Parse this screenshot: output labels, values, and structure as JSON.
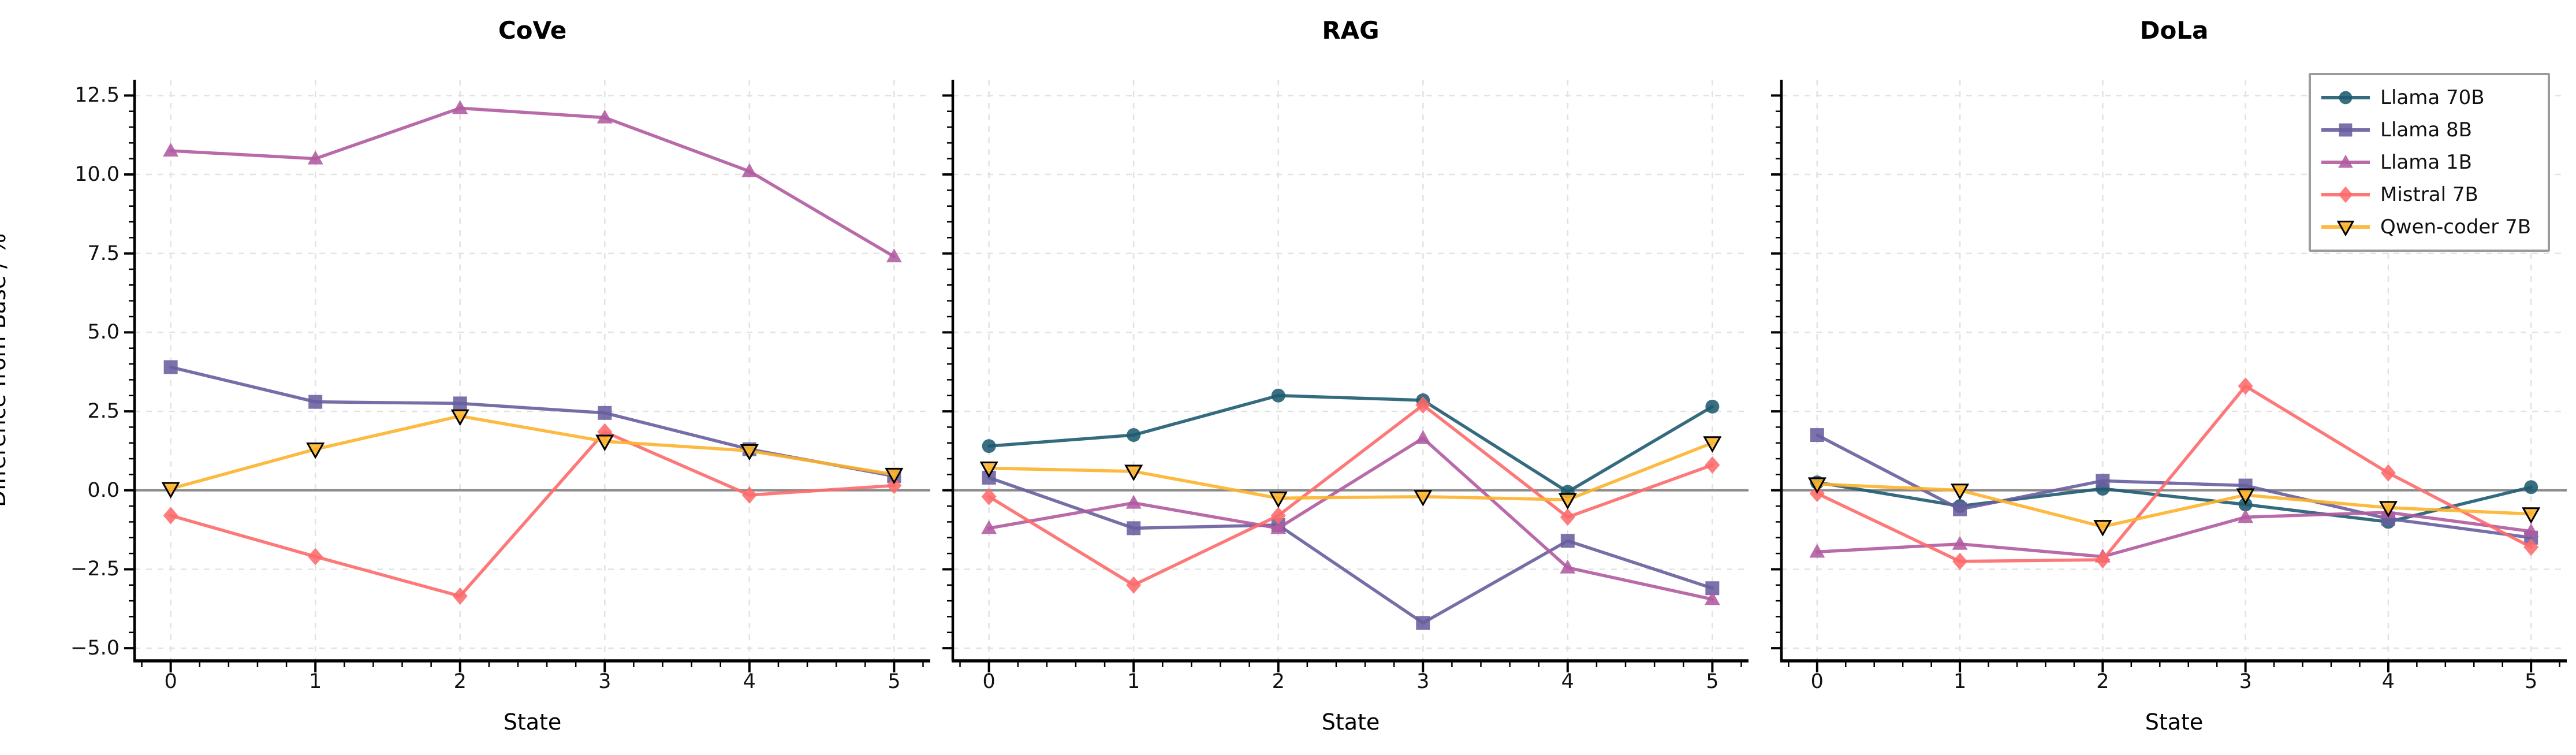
{
  "figure": {
    "ylabel": "Difference from Base / %",
    "xlabel": "State",
    "background_color": "#ffffff",
    "axis_color": "#000000",
    "grid_color": "#e2e2e2",
    "zero_line_color": "#8a8a8a",
    "tick_label_color": "#111111",
    "ylim": [
      -5.4,
      13.0
    ],
    "yticks": [
      -5.0,
      -2.5,
      0.0,
      2.5,
      5.0,
      7.5,
      10.0,
      12.5
    ],
    "ytick_labels": [
      "−5.0",
      "−2.5",
      "0.0",
      "2.5",
      "5.0",
      "7.5",
      "10.0",
      "12.5"
    ],
    "xticks": [
      0,
      1,
      2,
      3,
      4,
      5
    ],
    "xtick_labels": [
      "0",
      "1",
      "2",
      "3",
      "4",
      "5"
    ],
    "grid": "on"
  },
  "series_defs": [
    {
      "name": "Llama 70B",
      "color": "#1f5b70",
      "marker": "circle",
      "marker_edge": "none"
    },
    {
      "name": "Llama 8B",
      "color": "#685e9e",
      "marker": "square",
      "marker_edge": "none"
    },
    {
      "name": "Llama 1B",
      "color": "#b05aa0",
      "marker": "triangle-up",
      "marker_edge": "none"
    },
    {
      "name": "Mistral 7B",
      "color": "#fd6a6a",
      "marker": "diamond",
      "marker_edge": "none"
    },
    {
      "name": "Qwen-coder 7B",
      "color": "#fdb32b",
      "marker": "triangle-down",
      "marker_edge": "#000000"
    }
  ],
  "legend": {
    "position": "top-right",
    "entries": [
      "Llama 70B",
      "Llama 8B",
      "Llama 1B",
      "Mistral 7B",
      "Qwen-coder 7B"
    ]
  },
  "chart_data": [
    {
      "type": "line",
      "title": "CoVe",
      "xlabel": "State",
      "x": [
        0,
        1,
        2,
        3,
        4,
        5
      ],
      "series": [
        {
          "name": "Llama 8B",
          "values": [
            3.9,
            2.8,
            2.75,
            2.45,
            1.3,
            0.45
          ]
        },
        {
          "name": "Llama 1B",
          "values": [
            10.75,
            10.5,
            12.1,
            11.8,
            10.1,
            7.4
          ]
        },
        {
          "name": "Mistral 7B",
          "values": [
            -0.8,
            -2.1,
            -3.35,
            1.85,
            -0.15,
            0.15
          ]
        },
        {
          "name": "Qwen-coder 7B",
          "values": [
            0.05,
            1.3,
            2.35,
            1.55,
            1.25,
            0.5
          ]
        }
      ]
    },
    {
      "type": "line",
      "title": "RAG",
      "xlabel": "State",
      "x": [
        0,
        1,
        2,
        3,
        4,
        5
      ],
      "series": [
        {
          "name": "Llama 70B",
          "values": [
            1.4,
            1.75,
            3.0,
            2.85,
            -0.05,
            2.65
          ]
        },
        {
          "name": "Llama 8B",
          "values": [
            0.4,
            -1.2,
            -1.1,
            -4.2,
            -1.6,
            -3.1
          ]
        },
        {
          "name": "Llama 1B",
          "values": [
            -1.2,
            -0.4,
            -1.2,
            1.65,
            -2.45,
            -3.45
          ]
        },
        {
          "name": "Mistral 7B",
          "values": [
            -0.2,
            -3.0,
            -0.8,
            2.7,
            -0.85,
            0.8
          ]
        },
        {
          "name": "Qwen-coder 7B",
          "values": [
            0.7,
            0.6,
            -0.25,
            -0.2,
            -0.3,
            1.5
          ]
        }
      ]
    },
    {
      "type": "line",
      "title": "DoLa",
      "xlabel": "State",
      "x": [
        0,
        1,
        2,
        3,
        4,
        5
      ],
      "series": [
        {
          "name": "Llama 70B",
          "values": [
            0.25,
            -0.5,
            0.05,
            -0.45,
            -1.0,
            0.1
          ]
        },
        {
          "name": "Llama 8B",
          "values": [
            1.75,
            -0.6,
            0.3,
            0.15,
            -0.9,
            -1.5
          ]
        },
        {
          "name": "Llama 1B",
          "values": [
            -1.95,
            -1.7,
            -2.1,
            -0.85,
            -0.7,
            -1.3
          ]
        },
        {
          "name": "Mistral 7B",
          "values": [
            -0.1,
            -2.25,
            -2.2,
            3.3,
            0.55,
            -1.8
          ]
        },
        {
          "name": "Qwen-coder 7B",
          "values": [
            0.2,
            0.0,
            -1.15,
            -0.15,
            -0.55,
            -0.75
          ]
        }
      ]
    }
  ]
}
